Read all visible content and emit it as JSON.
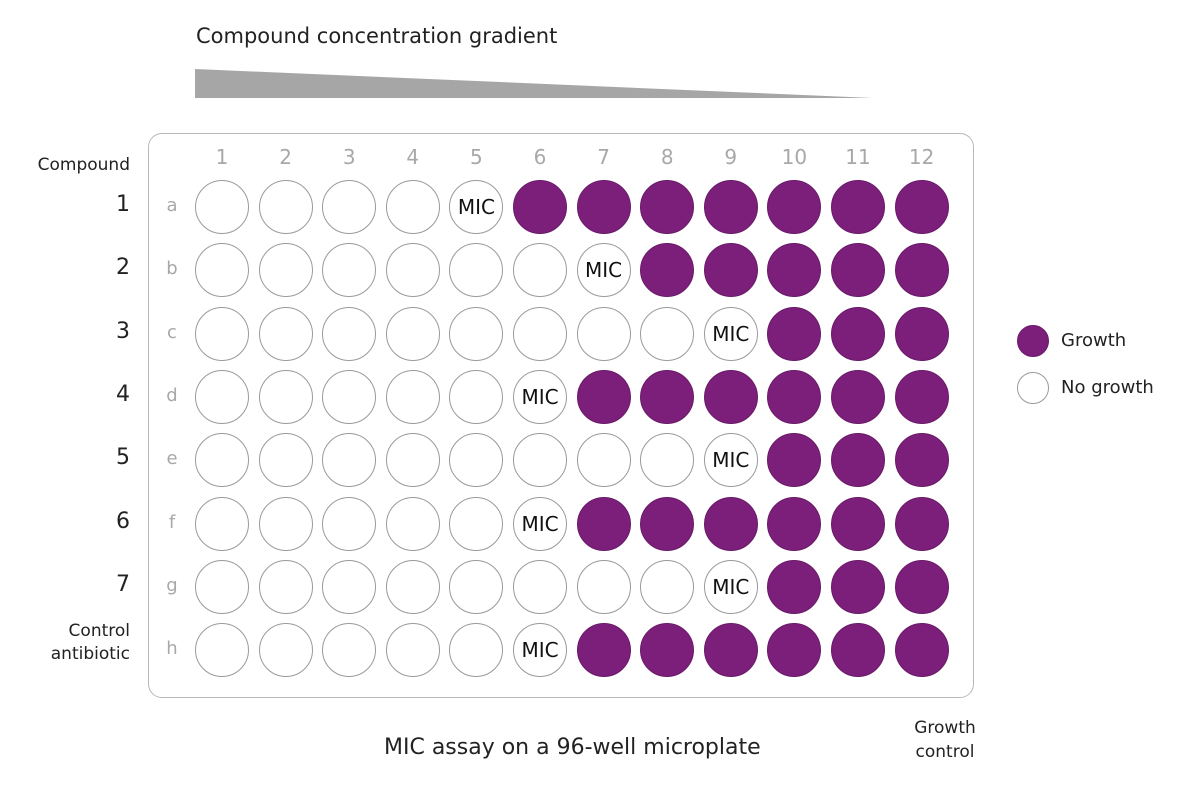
{
  "gradient": {
    "title": "Compound concentration gradient"
  },
  "plate": {
    "columns": [
      "1",
      "2",
      "3",
      "4",
      "5",
      "6",
      "7",
      "8",
      "9",
      "10",
      "11",
      "12"
    ],
    "row_letters": [
      "a",
      "b",
      "c",
      "d",
      "e",
      "f",
      "g",
      "h"
    ],
    "compound_header": "Compound",
    "compound_numbers": [
      "1",
      "2",
      "3",
      "4",
      "5",
      "6",
      "7"
    ],
    "control_label": [
      "Control",
      "antibiotic"
    ],
    "mic_label": "MIC",
    "mic_column_by_row": [
      5,
      7,
      9,
      6,
      9,
      6,
      9,
      6
    ]
  },
  "legend": {
    "growth": {
      "label": "Growth",
      "color": "#7b1f7a"
    },
    "no_growth": {
      "label": "No growth",
      "color": "#ffffff"
    }
  },
  "caption": "MIC assay on a 96-well microplate",
  "growth_control": [
    "Growth",
    "control"
  ]
}
